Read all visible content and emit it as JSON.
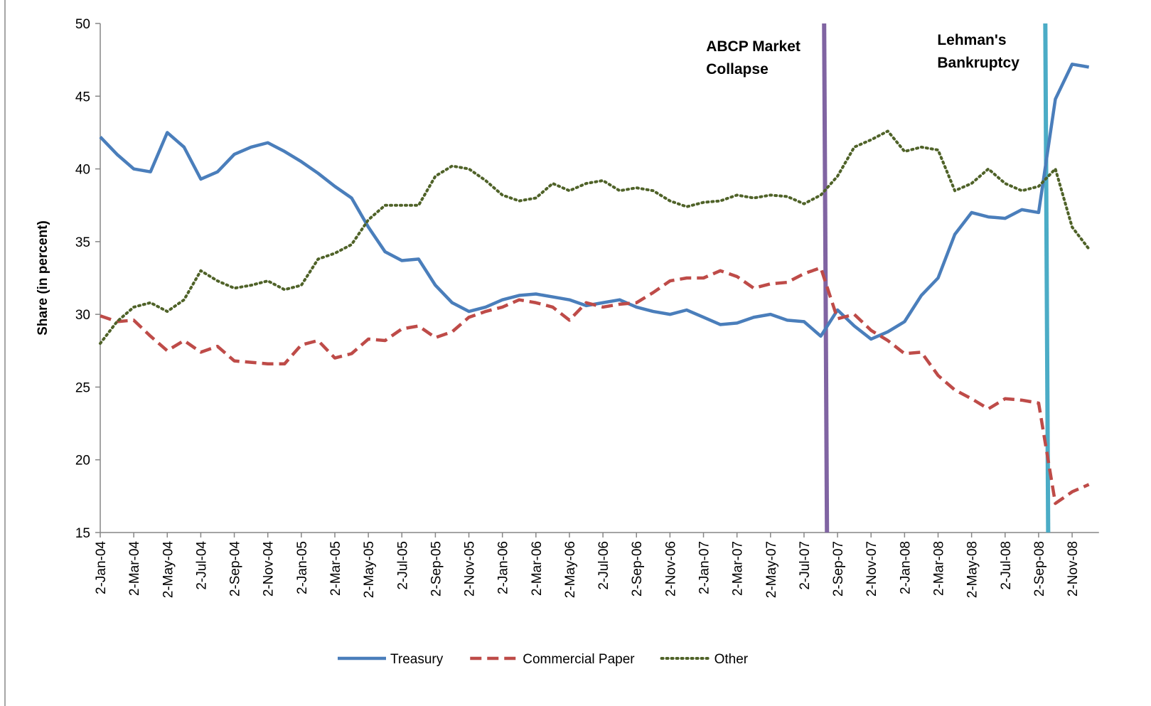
{
  "chart_data": {
    "type": "line",
    "y_label": "Share (in percent)",
    "categories": [
      "2-Jan-04",
      null,
      "2-Mar-04",
      null,
      "2-May-04",
      null,
      "2-Jul-04",
      null,
      "2-Sep-04",
      null,
      "2-Nov-04",
      null,
      "2-Jan-05",
      null,
      "2-Mar-05",
      null,
      "2-May-05",
      null,
      "2-Jul-05",
      null,
      "2-Sep-05",
      null,
      "2-Nov-05",
      null,
      "2-Jan-06",
      null,
      "2-Mar-06",
      null,
      "2-May-06",
      null,
      "2-Jul-06",
      null,
      "2-Sep-06",
      null,
      "2-Nov-06",
      null,
      "2-Jan-07",
      null,
      "2-Mar-07",
      null,
      "2-May-07",
      null,
      "2-Jul-07",
      null,
      "2-Sep-07",
      null,
      "2-Nov-07",
      null,
      "2-Jan-08",
      null,
      "2-Mar-08",
      null,
      "2-May-08",
      null,
      "2-Jul-08",
      null,
      "2-Sep-08",
      null,
      "2-Nov-08",
      null
    ],
    "series": [
      {
        "name": "Treasury",
        "color": "#4a7ebb",
        "dash": "solid",
        "values": [
          42.2,
          41,
          40,
          39.8,
          42.5,
          41.5,
          39.3,
          39.8,
          41,
          41.5,
          41.8,
          41.2,
          40.5,
          39.7,
          38.8,
          38,
          36,
          34.3,
          33.7,
          33.8,
          32,
          30.8,
          30.2,
          30.5,
          31,
          31.3,
          31.4,
          31.2,
          31,
          30.6,
          30.8,
          31,
          30.5,
          30.2,
          30,
          30.3,
          29.8,
          29.3,
          29.4,
          29.8,
          30,
          29.6,
          29.5,
          28.5,
          30.3,
          29.2,
          28.3,
          28.8,
          29.5,
          31.3,
          32.5,
          35.5,
          37,
          36.7,
          36.6,
          37.2,
          37,
          44.8,
          47.2,
          47.0
        ]
      },
      {
        "name": "Commercial Paper",
        "color": "#be4b48",
        "dash": "dashed",
        "values": [
          29.9,
          29.5,
          29.6,
          28.5,
          27.5,
          28.2,
          27.4,
          27.8,
          26.8,
          26.7,
          26.6,
          26.6,
          27.9,
          28.2,
          27,
          27.3,
          28.3,
          28.2,
          29,
          29.2,
          28.4,
          28.8,
          29.8,
          30.2,
          30.5,
          31,
          30.8,
          30.5,
          29.6,
          30.8,
          30.5,
          30.7,
          30.8,
          31.5,
          32.3,
          32.5,
          32.5,
          33,
          32.6,
          31.8,
          32.1,
          32.2,
          32.8,
          33.2,
          29.7,
          30,
          28.9,
          28.2,
          27.3,
          27.4,
          25.8,
          24.8,
          24.2,
          23.5,
          24.2,
          24.1,
          23.9,
          17,
          17.8,
          18.3
        ]
      },
      {
        "name": "Other",
        "color": "#4f6228",
        "dash": "dotted",
        "values": [
          28,
          29.5,
          30.5,
          30.8,
          30.2,
          31,
          33,
          32.3,
          31.8,
          32,
          32.3,
          31.7,
          32,
          33.8,
          34.2,
          34.8,
          36.5,
          37.5,
          37.5,
          37.5,
          39.5,
          40.2,
          40,
          39.2,
          38.2,
          37.8,
          38,
          39,
          38.5,
          39,
          39.2,
          38.5,
          38.7,
          38.5,
          37.8,
          37.4,
          37.7,
          37.8,
          38.2,
          38,
          38.2,
          38.1,
          37.6,
          38.2,
          39.5,
          41.5,
          42,
          42.6,
          41.2,
          41.5,
          41.3,
          38.5,
          39,
          40,
          39,
          38.5,
          38.8,
          40,
          36,
          34.5
        ]
      }
    ],
    "ylim": [
      15,
      50
    ],
    "yticks": [
      15,
      20,
      25,
      30,
      35,
      40,
      45,
      50
    ],
    "annotations": [
      {
        "lines": [
          "ABCP Market",
          "Collapse"
        ],
        "color": "#8064a2"
      },
      {
        "lines": [
          "Lehman's",
          "Bankruptcy"
        ],
        "color": "#4bacc6"
      }
    ],
    "legend": "bottom"
  }
}
